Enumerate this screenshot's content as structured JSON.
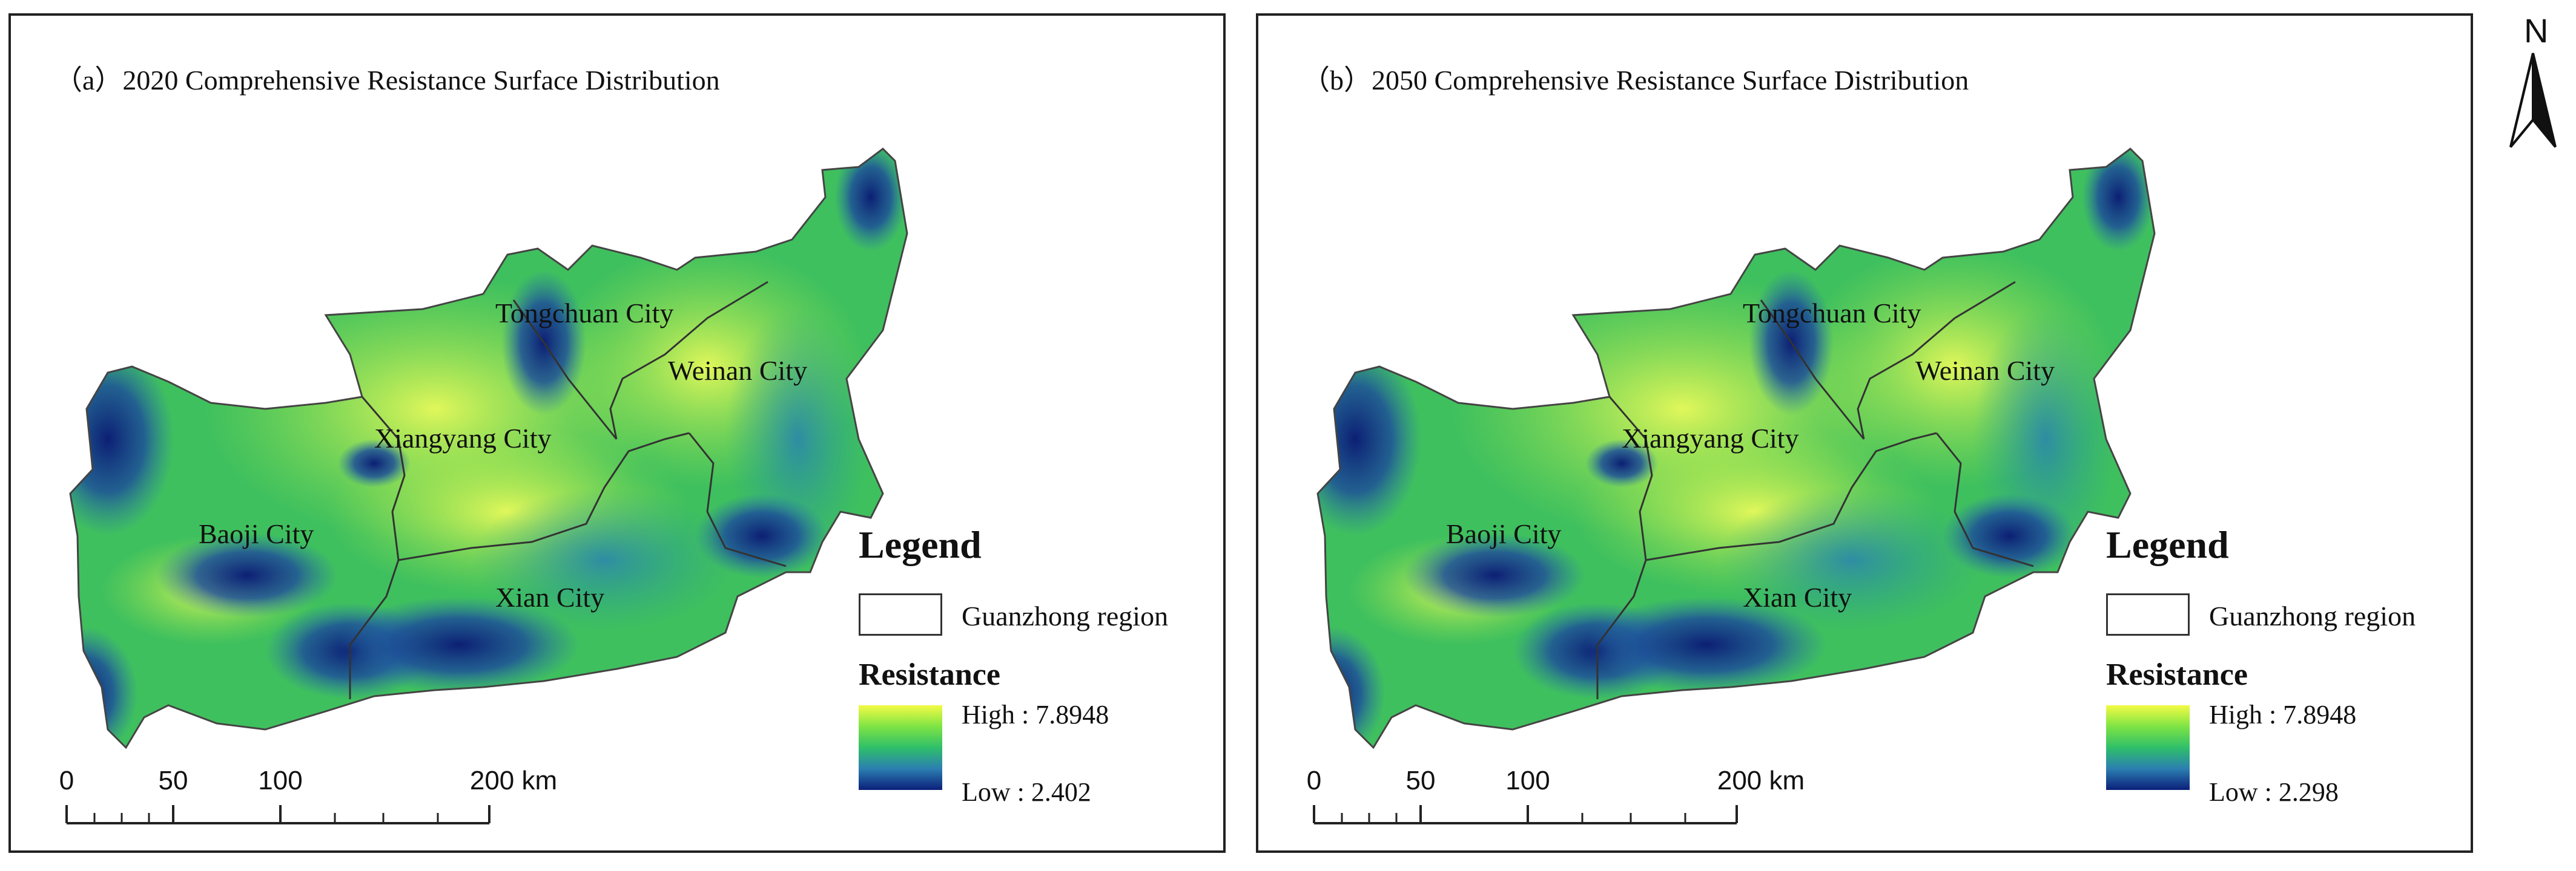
{
  "panels": [
    {
      "id": "a",
      "title": "（a）2020 Comprehensive Resistance Surface Distribution",
      "cities": {
        "tongchuan": "Tongchuan City",
        "weinan": "Weinan City",
        "xiangyang": "Xiangyang City",
        "baoji": "Baoji City",
        "xian": "Xian City"
      },
      "legend": {
        "title": "Legend",
        "region_label": "Guanzhong region",
        "resistance_title": "Resistance",
        "high": "High : 7.8948",
        "low": "Low : 2.402"
      },
      "scale": {
        "ticks": [
          "0",
          "50",
          "100",
          "200 km"
        ]
      }
    },
    {
      "id": "b",
      "title": "（b）2050 Comprehensive Resistance Surface Distribution",
      "cities": {
        "tongchuan": "Tongchuan City",
        "weinan": "Weinan City",
        "xiangyang": "Xiangyang City",
        "baoji": "Baoji City",
        "xian": "Xian City"
      },
      "legend": {
        "title": "Legend",
        "region_label": "Guanzhong region",
        "resistance_title": "Resistance",
        "high": "High : 7.8948",
        "low": "Low : 2.298"
      },
      "scale": {
        "ticks": [
          "0",
          "50",
          "100",
          "200 km"
        ]
      }
    }
  ],
  "north_arrow": {
    "label": "N"
  },
  "colors": {
    "ramp_high": "#f3fb45",
    "ramp_mid_high": "#7ee444",
    "ramp_mid": "#2fbf6a",
    "ramp_mid_low": "#2b7fb1",
    "ramp_low": "#0b1f7a"
  }
}
